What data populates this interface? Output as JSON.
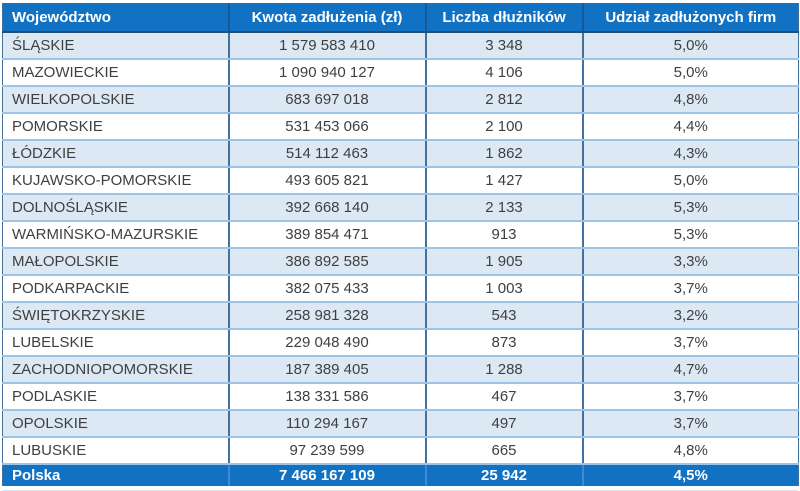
{
  "chart_data": {
    "type": "table",
    "columns": [
      "Województwo",
      "Kwota zadłużenia (zł)",
      "Liczba dłużników",
      "Udział zadłużonych firm"
    ],
    "rows": [
      [
        "ŚLĄSKIE",
        "1 579 583 410",
        "3 348",
        "5,0%"
      ],
      [
        "MAZOWIECKIE",
        "1 090 940 127",
        "4 106",
        "5,0%"
      ],
      [
        "WIELKOPOLSKIE",
        "683 697 018",
        "2 812",
        "4,8%"
      ],
      [
        "POMORSKIE",
        "531 453 066",
        "2 100",
        "4,4%"
      ],
      [
        "ŁÓDZKIE",
        "514 112 463",
        "1 862",
        "4,3%"
      ],
      [
        "KUJAWSKO-POMORSKIE",
        "493 605 821",
        "1 427",
        "5,0%"
      ],
      [
        "DOLNOŚLĄSKIE",
        "392 668 140",
        "2 133",
        "5,3%"
      ],
      [
        "WARMIŃSKO-MAZURSKIE",
        "389 854 471",
        "913",
        "5,3%"
      ],
      [
        "MAŁOPOLSKIE",
        "386 892 585",
        "1 905",
        "3,3%"
      ],
      [
        "PODKARPACKIE",
        "382 075 433",
        "1 003",
        "3,7%"
      ],
      [
        "ŚWIĘTOKRZYSKIE",
        "258 981 328",
        "543",
        "3,2%"
      ],
      [
        "LUBELSKIE",
        "229 048 490",
        "873",
        "3,7%"
      ],
      [
        "ZACHODNIOPOMORSKIE",
        "187 389 405",
        "1 288",
        "4,7%"
      ],
      [
        "PODLASKIE",
        "138 331 586",
        "467",
        "3,7%"
      ],
      [
        "OPOLSKIE",
        "110 294 167",
        "497",
        "3,7%"
      ],
      [
        "LUBUSKIE",
        "97 239 599",
        "665",
        "4,8%"
      ]
    ],
    "footer": [
      "Polska",
      "7 466 167 109",
      "25 942",
      "4,5%"
    ],
    "layout": {
      "striped": true,
      "first_data_row_shaded": true,
      "column_alignments": [
        "left",
        "center",
        "center",
        "center"
      ]
    }
  },
  "colors": {
    "header_bg": "#1172C3",
    "header_text": "#FFFFFF",
    "row_alt_bg": "#DCE9F4",
    "row_bg": "#FFFFFF",
    "row_divider": "#9DC3E6",
    "col_divider": "#41719C",
    "text": "#3F3F3F"
  }
}
